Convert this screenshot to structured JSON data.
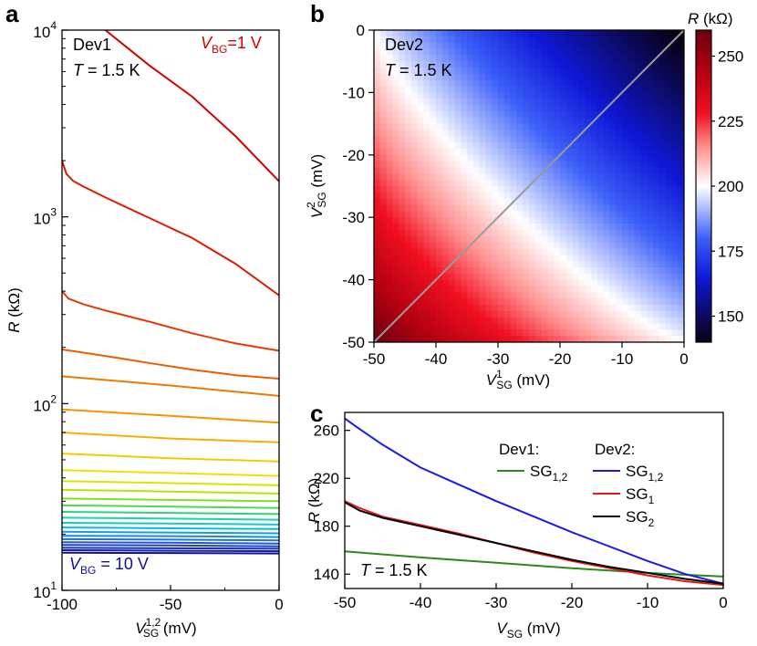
{
  "panels": {
    "a": {
      "letter": "a"
    },
    "b": {
      "letter": "b"
    },
    "c": {
      "letter": "c"
    }
  },
  "chart_data": [
    {
      "id": "a",
      "type": "line",
      "xlabel": {
        "main": "V",
        "sub": "SG",
        "sup": "1,2",
        "unit": " (mV)"
      },
      "ylabel": {
        "main": "R",
        "unit": " (kΩ)"
      },
      "xlim": [
        -100,
        0
      ],
      "ylim": [
        10,
        10000
      ],
      "yscale": "log",
      "xticks": [
        -100,
        -50,
        0
      ],
      "xtick_labels": [
        "-100",
        "-50",
        "0"
      ],
      "yticks": [
        10,
        100,
        1000,
        10000
      ],
      "ytick_labels": [
        {
          "base": "10",
          "exp": "1"
        },
        {
          "base": "10",
          "exp": "2"
        },
        {
          "base": "10",
          "exp": "3"
        },
        {
          "base": "10",
          "exp": "4"
        }
      ],
      "annotations": {
        "device": "Dev1",
        "temperature": {
          "var": "T",
          "text": " = 1.5 K"
        },
        "top_label": {
          "var": "V",
          "sub": "BG",
          "text": "=1 V",
          "color": "#d40000"
        },
        "bottom_label": {
          "var": "V",
          "sub": "BG",
          "text": " = 10 V",
          "color": "#10109a"
        }
      },
      "vbg_range": [
        1,
        10
      ],
      "series": [
        {
          "x": [
            -80,
            -60,
            -40,
            -20,
            0
          ],
          "y": [
            10000,
            6500,
            4400,
            2700,
            1550
          ],
          "color": "#d40000"
        },
        {
          "x": [
            -100,
            -98,
            -95,
            -90,
            -80,
            -60,
            -40,
            -20,
            0
          ],
          "y": [
            2000,
            1700,
            1560,
            1450,
            1270,
            990,
            770,
            560,
            380
          ],
          "color": "#dc1a00"
        },
        {
          "x": [
            -100,
            -97,
            -90,
            -80,
            -60,
            -40,
            -20,
            0
          ],
          "y": [
            400,
            365,
            340,
            315,
            275,
            238,
            210,
            192
          ],
          "color": "#e63a00"
        },
        {
          "x": [
            -100,
            -80,
            -60,
            -40,
            -20,
            0
          ],
          "y": [
            195,
            180,
            165,
            152,
            142,
            136
          ],
          "color": "#ec5c00"
        },
        {
          "x": [
            -100,
            -50,
            0
          ],
          "y": [
            140,
            125,
            110
          ],
          "color": "#f07800"
        },
        {
          "x": [
            -100,
            -50,
            0
          ],
          "y": [
            93,
            86,
            79
          ],
          "color": "#f59500"
        },
        {
          "x": [
            -100,
            -50,
            0
          ],
          "y": [
            70,
            65,
            62
          ],
          "color": "#f8b000"
        },
        {
          "x": [
            -100,
            -50,
            0
          ],
          "y": [
            54,
            51,
            49
          ],
          "color": "#f6cc00"
        },
        {
          "x": [
            -100,
            -50,
            0
          ],
          "y": [
            44,
            42.5,
            41
          ],
          "color": "#f0e000"
        },
        {
          "x": [
            -100,
            -50,
            0
          ],
          "y": [
            38.5,
            37.5,
            36.5
          ],
          "color": "#d4e800"
        },
        {
          "x": [
            -100,
            -50,
            0
          ],
          "y": [
            34.5,
            33.8,
            33
          ],
          "color": "#b0e800"
        },
        {
          "x": [
            -100,
            -50,
            0
          ],
          "y": [
            31,
            30.5,
            30
          ],
          "color": "#80e020"
        },
        {
          "x": [
            -100,
            -50,
            0
          ],
          "y": [
            28.5,
            28.1,
            27.6
          ],
          "color": "#50d850"
        },
        {
          "x": [
            -100,
            -50,
            0
          ],
          "y": [
            26.3,
            26,
            25.6
          ],
          "color": "#30d080"
        },
        {
          "x": [
            -100,
            -50,
            0
          ],
          "y": [
            24.5,
            24.2,
            23.9
          ],
          "color": "#20d0b0"
        },
        {
          "x": [
            -100,
            -50,
            0
          ],
          "y": [
            23,
            22.8,
            22.5
          ],
          "color": "#10c8d0"
        },
        {
          "x": [
            -100,
            -50,
            0
          ],
          "y": [
            21.7,
            21.5,
            21.3
          ],
          "color": "#10b8e0"
        },
        {
          "x": [
            -100,
            -50,
            0
          ],
          "y": [
            20.6,
            20.4,
            20.2
          ],
          "color": "#10a0e8"
        },
        {
          "x": [
            -100,
            -50,
            0
          ],
          "y": [
            19.6,
            19.5,
            19.3
          ],
          "color": "#1888e8"
        },
        {
          "x": [
            -100,
            -50,
            0
          ],
          "y": [
            18.8,
            18.7,
            18.5
          ],
          "color": "#2070e0"
        },
        {
          "x": [
            -100,
            -50,
            0
          ],
          "y": [
            18.1,
            18,
            17.8
          ],
          "color": "#2058d0"
        },
        {
          "x": [
            -100,
            -50,
            0
          ],
          "y": [
            17.5,
            17.4,
            17.2
          ],
          "color": "#1d42c0"
        },
        {
          "x": [
            -100,
            -50,
            0
          ],
          "y": [
            16.9,
            16.8,
            16.7
          ],
          "color": "#1830b0"
        },
        {
          "x": [
            -100,
            -50,
            0
          ],
          "y": [
            16.4,
            16.3,
            16.2
          ],
          "color": "#1420a4"
        },
        {
          "x": [
            -100,
            -50,
            0
          ],
          "y": [
            15.9,
            15.85,
            15.75
          ],
          "color": "#10109a"
        }
      ]
    },
    {
      "id": "b",
      "type": "heatmap",
      "xlabel": {
        "main": "V",
        "sub": "SG",
        "sup": "1",
        "unit": " (mV)"
      },
      "ylabel": {
        "main": "V",
        "sub": "SG",
        "sup": "2",
        "unit": " (mV)"
      },
      "xlim": [
        -50,
        0
      ],
      "ylim": [
        -50,
        0
      ],
      "xticks": [
        -50,
        -40,
        -30,
        -20,
        -10,
        0
      ],
      "xtick_labels": [
        "-50",
        "-40",
        "-30",
        "-20",
        "-10",
        "0"
      ],
      "yticks": [
        0,
        -10,
        -20,
        -30,
        -40,
        -50
      ],
      "ytick_labels": [
        "0",
        "-10",
        "-20",
        "-30",
        "-40",
        "-50"
      ],
      "colorbar": {
        "label": {
          "var": "R",
          "unit": " (kΩ)"
        },
        "range": [
          140,
          260
        ],
        "ticks": [
          250,
          225,
          200,
          175,
          150
        ],
        "tick_labels": [
          "250",
          "225",
          "200",
          "175",
          "150"
        ],
        "colormap": [
          "#0a0014",
          "#101080",
          "#1020e0",
          "#ffffff",
          "#e81020",
          "#780010"
        ]
      },
      "annotations": {
        "device": "Dev2",
        "temperature": {
          "var": "T",
          "text": " = 1.5 K"
        }
      },
      "diagonal": {
        "from": [
          -50,
          -50
        ],
        "to": [
          0,
          0
        ],
        "color": "#9a9a9a"
      },
      "grid_size": 50,
      "surface": {
        "value_at_corner_neg50_neg50": 262,
        "value_at_corner_0_0": 138,
        "form": "R = 138 + 124 * ((x+50)(y+50)/2500 scaled so R(-50,0)=R(0,-50)=200)"
      }
    },
    {
      "id": "c",
      "type": "line",
      "xlabel": {
        "main": "V",
        "sub": "SG",
        "unit": " (mV)"
      },
      "ylabel": {
        "main": "R",
        "unit": " (kΩ)"
      },
      "xlim": [
        -50,
        0
      ],
      "ylim": [
        128,
        275
      ],
      "xticks": [
        -50,
        -40,
        -30,
        -20,
        -10,
        0
      ],
      "xtick_labels": [
        "-50",
        "-40",
        "-30",
        "-20",
        "-10",
        "0"
      ],
      "yticks": [
        140,
        180,
        220,
        260
      ],
      "ytick_labels": [
        "140",
        "180",
        "220",
        "260"
      ],
      "annotations": {
        "temperature": {
          "var": "T",
          "text": " = 1.5 K"
        }
      },
      "legend": {
        "dev1_title": "Dev1:",
        "dev2_title": "Dev2:",
        "placement": "upper-right"
      },
      "series": [
        {
          "group": "Dev1:",
          "name": "SG",
          "sub": "1,2",
          "color": "#2a8a1a",
          "x": [
            -50,
            -40,
            -30,
            -20,
            -10,
            0
          ],
          "y": [
            159,
            154,
            149.5,
            145,
            141,
            138
          ]
        },
        {
          "group": "Dev2:",
          "name": "SG",
          "sub": "1,2",
          "color": "#1a1ae8",
          "x": [
            -50,
            -48,
            -45,
            -40,
            -35,
            -30,
            -25,
            -20,
            -15,
            -10,
            -5,
            0
          ],
          "y": [
            270,
            261,
            248,
            229,
            215,
            201,
            188,
            175,
            163,
            151,
            140,
            132
          ]
        },
        {
          "group": "Dev2:",
          "name": "SG",
          "sub": "1",
          "color": "#e01818",
          "x": [
            -50,
            -48,
            -45,
            -40,
            -35,
            -30,
            -25,
            -20,
            -15,
            -10,
            -5,
            0
          ],
          "y": [
            201,
            195,
            188,
            181,
            174,
            166,
            158,
            151,
            145,
            139,
            134,
            131
          ]
        },
        {
          "group": "Dev2:",
          "name": "SG",
          "sub": "2",
          "color": "#000000",
          "x": [
            -50,
            -48,
            -45,
            -40,
            -35,
            -30,
            -25,
            -20,
            -15,
            -10,
            -5,
            0
          ],
          "y": [
            200,
            193,
            187,
            180,
            173,
            166,
            159,
            152,
            146,
            141,
            136,
            132
          ]
        }
      ]
    }
  ]
}
